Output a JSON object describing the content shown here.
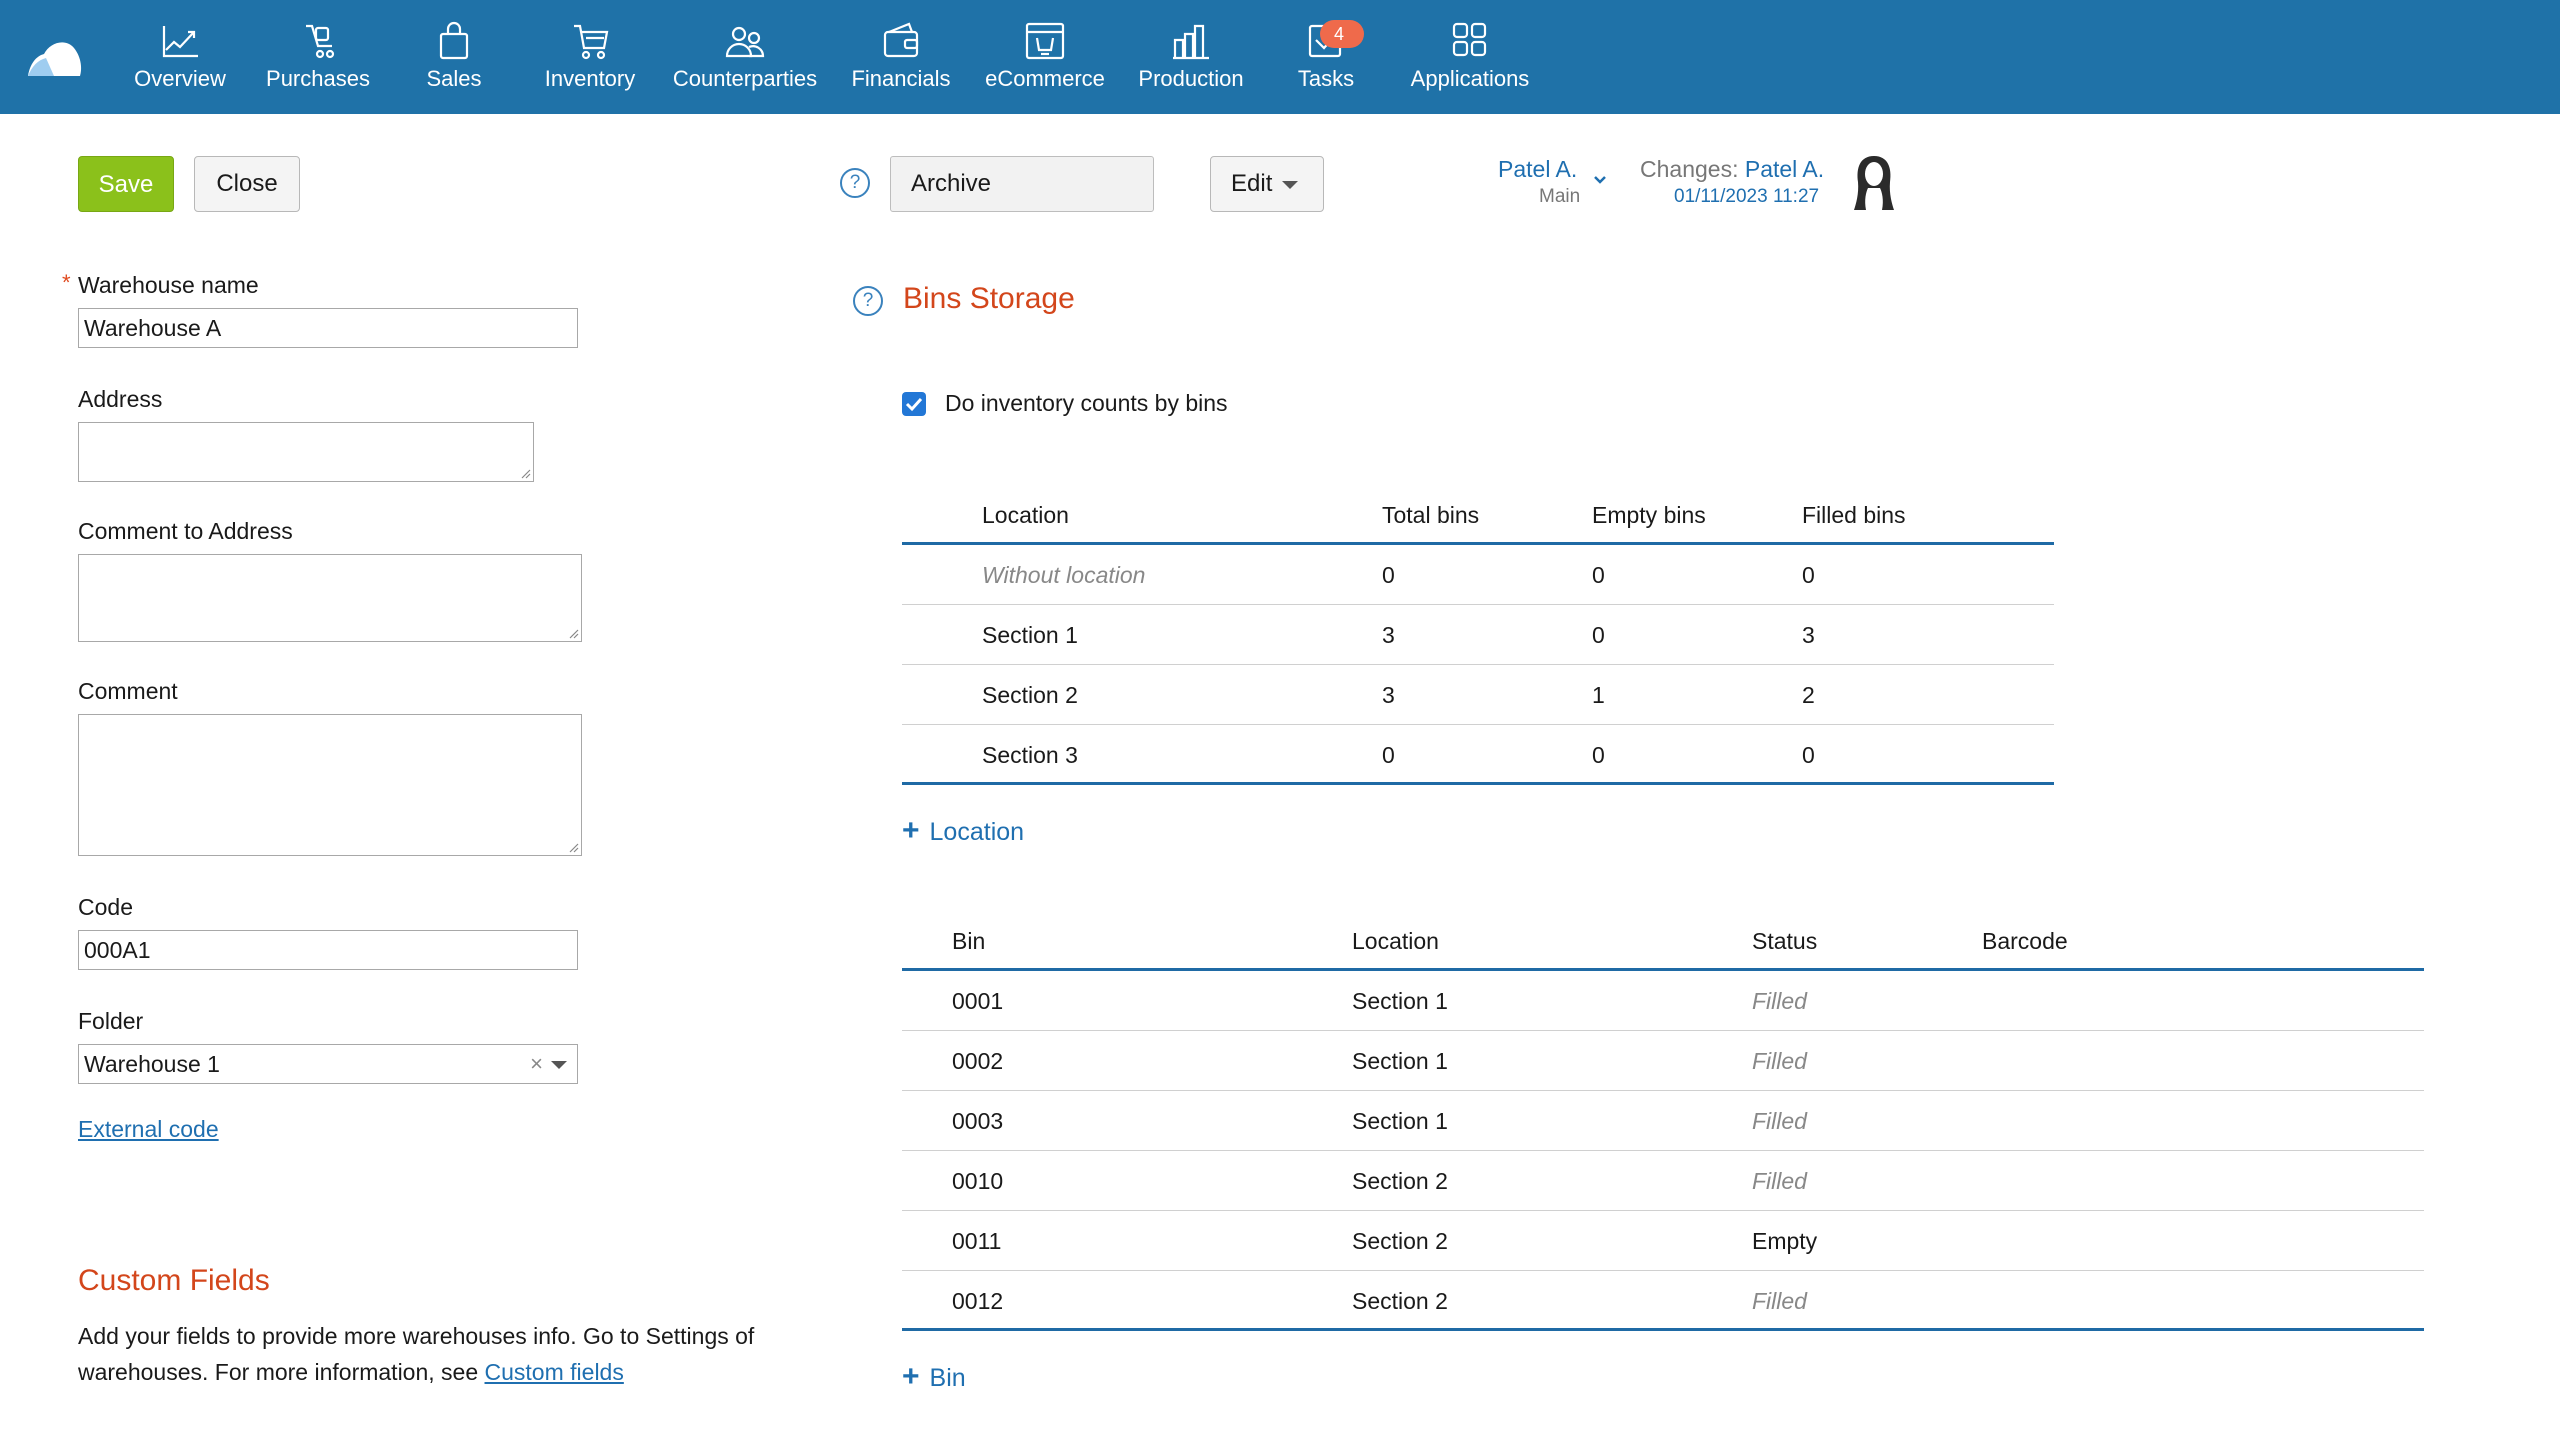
{
  "nav": {
    "items": [
      {
        "label": "Overview",
        "icon": "chart-line-icon"
      },
      {
        "label": "Purchases",
        "icon": "cart-hand-icon"
      },
      {
        "label": "Sales",
        "icon": "shopping-bag-icon"
      },
      {
        "label": "Inventory",
        "icon": "cart-icon"
      },
      {
        "label": "Counterparties",
        "icon": "people-icon"
      },
      {
        "label": "Financials",
        "icon": "wallet-icon"
      },
      {
        "label": "eCommerce",
        "icon": "storefront-icon"
      },
      {
        "label": "Production",
        "icon": "factory-icon"
      },
      {
        "label": "Tasks",
        "icon": "checkbox-icon"
      },
      {
        "label": "Applications",
        "icon": "apps-grid-icon"
      }
    ],
    "tasks_badge": "4"
  },
  "toolbar": {
    "save": "Save",
    "close": "Close",
    "help": "?",
    "archive": "Archive",
    "edit": "Edit",
    "owner": "Patel A.",
    "owner_group": "Main",
    "changes_label": "Changes:",
    "changes_user": "Patel A.",
    "changes_date": "01/11/2023 11:27"
  },
  "form": {
    "required_mark": "*",
    "warehouse_name_label": "Warehouse name",
    "warehouse_name": "Warehouse A",
    "address_label": "Address",
    "address": "",
    "comment_address_label": "Comment to Address",
    "comment_address": "",
    "comment_label": "Comment",
    "comment": "",
    "code_label": "Code",
    "code": "000A1",
    "folder_label": "Folder",
    "folder": "Warehouse 1",
    "folder_clear": "×",
    "external_code": "External code"
  },
  "custom_fields": {
    "title": "Custom Fields",
    "text": "Add your fields to provide more warehouses info. Go to Settings of warehouses. For more information, see ",
    "link": "Custom fields"
  },
  "bins": {
    "title": "Bins Storage",
    "checkbox_label": "Do inventory counts by bins",
    "checked": true,
    "locations": {
      "headers": [
        "Location",
        "Total bins",
        "Empty bins",
        "Filled bins"
      ],
      "rows": [
        {
          "location": "Without location",
          "total": "0",
          "empty": "0",
          "filled": "0"
        },
        {
          "location": "Section 1",
          "total": "3",
          "empty": "0",
          "filled": "3"
        },
        {
          "location": "Section 2",
          "total": "3",
          "empty": "1",
          "filled": "2"
        },
        {
          "location": "Section 3",
          "total": "0",
          "empty": "0",
          "filled": "0"
        }
      ]
    },
    "add_location": "Location",
    "bins_table": {
      "headers": [
        "Bin",
        "Location",
        "Status",
        "Barcode"
      ],
      "rows": [
        {
          "bin": "0001",
          "location": "Section 1",
          "status": "Filled",
          "barcode": ""
        },
        {
          "bin": "0002",
          "location": "Section 1",
          "status": "Filled",
          "barcode": ""
        },
        {
          "bin": "0003",
          "location": "Section 1",
          "status": "Filled",
          "barcode": ""
        },
        {
          "bin": "0010",
          "location": "Section 2",
          "status": "Filled",
          "barcode": ""
        },
        {
          "bin": "0011",
          "location": "Section 2",
          "status": "Empty",
          "barcode": ""
        },
        {
          "bin": "0012",
          "location": "Section 2",
          "status": "Filled",
          "barcode": ""
        }
      ]
    },
    "add_bin": "Bin",
    "add_symbol": "+"
  },
  "colors": {
    "nav_bg": "#1f72a8",
    "save_green": "#8bc11b",
    "accent_blue": "#1f6fb0",
    "section_title": "#d3461b",
    "badge": "#ef6a4b"
  }
}
